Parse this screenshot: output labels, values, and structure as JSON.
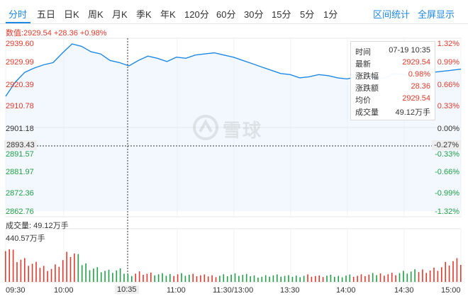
{
  "tabs": [
    {
      "label": "分时",
      "active": true
    },
    {
      "label": "五日"
    },
    {
      "label": "日K"
    },
    {
      "label": "周K"
    },
    {
      "label": "月K"
    },
    {
      "label": "季K"
    },
    {
      "label": "年K"
    },
    {
      "label": "120分"
    },
    {
      "label": "60分"
    },
    {
      "label": "30分"
    },
    {
      "label": "15分"
    },
    {
      "label": "5分"
    },
    {
      "label": "1分"
    }
  ],
  "links": {
    "interval_stats": "区间统计",
    "fullscreen": "全屏显示"
  },
  "info_line": "数值:2929.54 +28.36 +0.98%",
  "price_axis": {
    "left": [
      "2939.60",
      "2929.99",
      "2920.39",
      "2910.78",
      "2901.18",
      "2891.57",
      "2881.97",
      "2872.36",
      "2862.76"
    ],
    "right": [
      "1.32%",
      "0.99%",
      "0.66%",
      "0.33%",
      "0.00%",
      "-0.33%",
      "-0.66%",
      "-0.99%",
      "-1.32%"
    ],
    "crosshair_price": "2893.43",
    "crosshair_pct": "-0.27%"
  },
  "tooltip": {
    "time_label": "时间",
    "time_value": "07-19 10:35",
    "latest_label": "最新",
    "latest_value": "2929.54",
    "change_pct_label": "涨跌幅",
    "change_pct_value": "0.98%",
    "change_label": "涨跌额",
    "change_value": "28.36",
    "avg_label": "均价",
    "avg_value": "2929.54",
    "volume_label": "成交量",
    "volume_value": "49.12万手"
  },
  "volume": {
    "label": "成交量: 49.12万手",
    "max_label": "440.57万手"
  },
  "time_axis": [
    "09:30",
    "10:00",
    "10:35",
    "11:00",
    "11:30/13:00",
    "13:30",
    "14:00",
    "14:30",
    "15:00"
  ],
  "watermark": "雪球",
  "colors": {
    "accent": "#1e88e5",
    "up": "#e4392c",
    "down": "#21a048",
    "line": "#1e88e5"
  },
  "chart_data": {
    "type": "line",
    "xlabel": "",
    "ylabel": "",
    "ylim": [
      2862.76,
      2939.6
    ],
    "prev_close": 2901.18,
    "x": [
      "09:30",
      "09:35",
      "09:40",
      "09:45",
      "09:50",
      "09:55",
      "10:00",
      "10:05",
      "10:10",
      "10:15",
      "10:20",
      "10:25",
      "10:30",
      "10:35",
      "10:40",
      "10:45",
      "10:50",
      "10:55",
      "11:00",
      "11:05",
      "11:10",
      "11:15",
      "11:20",
      "11:25",
      "11:30",
      "13:05",
      "13:10",
      "13:15",
      "13:20",
      "13:25",
      "13:30",
      "13:35",
      "13:40",
      "13:45",
      "13:50",
      "13:55",
      "14:00",
      "14:05",
      "14:10",
      "14:15",
      "14:20",
      "14:25",
      "14:30",
      "14:35",
      "14:40",
      "14:45",
      "14:50",
      "14:55",
      "15:00"
    ],
    "series": [
      {
        "values": [
          2915.5,
          2922.0,
          2926.5,
          2928.5,
          2930.0,
          2931.0,
          2935.5,
          2939.6,
          2938.5,
          2936.0,
          2935.0,
          2932.0,
          2931.0,
          2929.5,
          2932.0,
          2934.0,
          2933.0,
          2931.5,
          2933.5,
          2933.0,
          2934.5,
          2935.0,
          2935.5,
          2934.5,
          2933.5,
          2932.0,
          2930.5,
          2929.0,
          2927.5,
          2926.0,
          2925.5,
          2924.0,
          2924.5,
          2925.5,
          2925.0,
          2924.0,
          2923.5,
          2924.5,
          2925.0,
          2923.5,
          2924.0,
          2926.0,
          2925.5,
          2925.0,
          2926.0,
          2926.5,
          2927.0,
          2927.5,
          2928.0
        ]
      },
      {
        "values": [
          60,
          38,
          30,
          25,
          22,
          20,
          32,
          45,
          28,
          22,
          18,
          15,
          17,
          10,
          14,
          12,
          11,
          10,
          12,
          11,
          10,
          9,
          9,
          10,
          11,
          10,
          9,
          8,
          10,
          9,
          8,
          9,
          10,
          8,
          9,
          8,
          10,
          9,
          10,
          11,
          12,
          12,
          14,
          15,
          17,
          18,
          22,
          30,
          28
        ]
      }
    ]
  }
}
